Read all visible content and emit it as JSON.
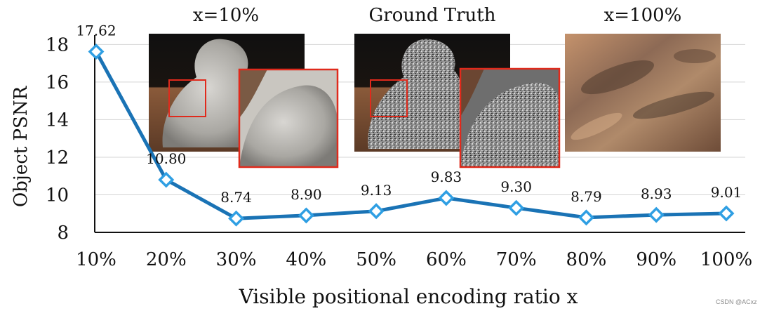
{
  "chart_data": {
    "type": "line",
    "categories": [
      "10%",
      "20%",
      "30%",
      "40%",
      "50%",
      "60%",
      "70%",
      "80%",
      "90%",
      "100%"
    ],
    "series": [
      {
        "values": [
          17.62,
          10.8,
          8.74,
          8.9,
          9.13,
          9.83,
          9.3,
          8.79,
          8.93,
          9.01
        ]
      }
    ],
    "data_labels": [
      "17.62",
      "10.80",
      "8.74",
      "8.90",
      "9.13",
      "9.83",
      "9.30",
      "8.79",
      "8.93",
      "9.01"
    ],
    "xlabel": "Visible positional encoding ratio x",
    "ylabel": "Object PSNR",
    "ylim": [
      8,
      18.5
    ],
    "yticks": [
      8,
      10,
      12,
      14,
      16,
      18
    ],
    "ytick_labels": [
      "8",
      "10",
      "12",
      "14",
      "16",
      "18"
    ],
    "grid": "horizontal",
    "line_color": "#1a73b5",
    "marker_color": "#2f9fe3",
    "insets": [
      {
        "caption": "x=10%"
      },
      {
        "caption": "Ground Truth"
      },
      {
        "caption": "x=100%"
      }
    ]
  },
  "watermark": "CSDN @ACxz"
}
